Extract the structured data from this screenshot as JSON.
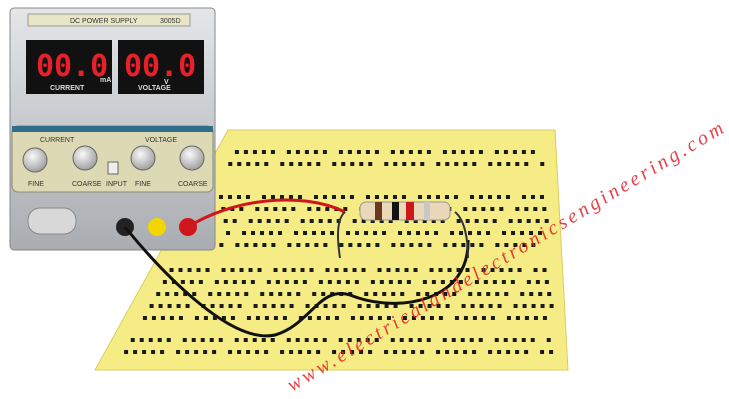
{
  "device": {
    "brand_label": "DC POWER SUPPLY",
    "model": "3005D",
    "current_display": "00.0",
    "voltage_display": "00.0",
    "current_label": "CURRENT",
    "voltage_label": "VOLTAGE",
    "current_unit": "mA",
    "voltage_unit": "V",
    "panel_current": "CURRENT",
    "panel_voltage": "VOLTAGE",
    "knob_labels": [
      "FINE",
      "COARSE",
      "INPUT",
      "FINE",
      "COARSE"
    ]
  },
  "watermark": "www.electricalandelectronicsengineering.com"
}
